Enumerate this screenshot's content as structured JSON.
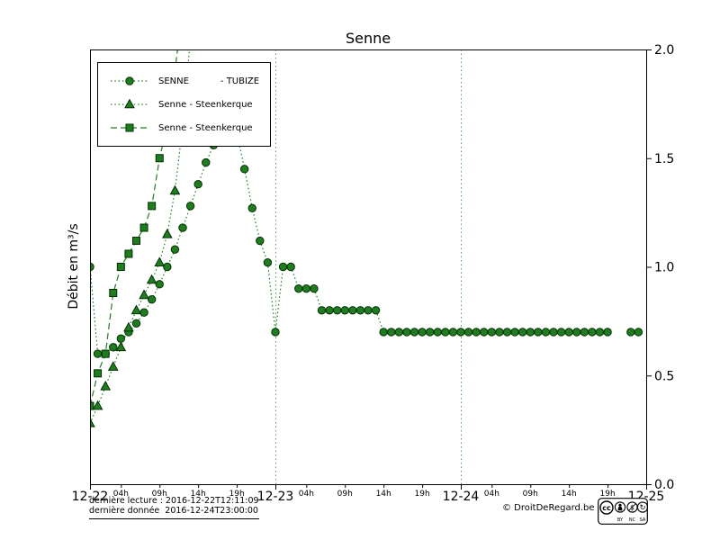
{
  "chart_data": {
    "type": "line",
    "title": "Senne",
    "ylabel": "Débit en m³/s",
    "ylim": [
      0,
      2.0
    ],
    "yticks": [
      0,
      0.5,
      1.0,
      1.5,
      2.0
    ],
    "ytick_labels": [
      "0.0",
      "0.5",
      "1.0",
      "1.5",
      "2.0"
    ],
    "x_total_hours": 72,
    "x_major": [
      {
        "h": 0,
        "label": "12-22"
      },
      {
        "h": 24,
        "label": "12-23"
      },
      {
        "h": 48,
        "label": "12-24"
      },
      {
        "h": 72,
        "label": "12-25"
      }
    ],
    "x_minor": [
      {
        "h": 4,
        "label": "04h"
      },
      {
        "h": 9,
        "label": "09h"
      },
      {
        "h": 14,
        "label": "14h"
      },
      {
        "h": 19,
        "label": "19h"
      },
      {
        "h": 28,
        "label": "04h"
      },
      {
        "h": 33,
        "label": "09h"
      },
      {
        "h": 38,
        "label": "14h"
      },
      {
        "h": 43,
        "label": "19h"
      },
      {
        "h": 52,
        "label": "04h"
      },
      {
        "h": 57,
        "label": "09h"
      },
      {
        "h": 62,
        "label": "14h"
      },
      {
        "h": 67,
        "label": "19h"
      }
    ],
    "day_gridlines": [
      24,
      48
    ],
    "grid": "partial-dotted-day-separators",
    "legend_position": "upper-left",
    "colors": {
      "series_green": "#1f7d1f",
      "marker_edge": "#022f02",
      "grid": "#55a055",
      "axis": "#000000",
      "background": "#ffffff"
    },
    "series": [
      {
        "id": "tubize-circles",
        "name": "SENNE           - TUBIZE",
        "marker": "circle",
        "linestyle": "dotted",
        "color": "#1f7d1f",
        "x_start_hour": 0,
        "x_step_hours": 1,
        "values": [
          1.0,
          0.6,
          0.6,
          0.63,
          0.67,
          0.7,
          0.74,
          0.79,
          0.85,
          0.92,
          1.0,
          1.08,
          1.18,
          1.28,
          1.38,
          1.48,
          1.56,
          1.62,
          1.65,
          1.62,
          1.45,
          1.27,
          1.12,
          1.02,
          0.7,
          1.0,
          1.0,
          0.9,
          0.9,
          0.9,
          0.8,
          0.8,
          0.8,
          0.8,
          0.8,
          0.8,
          0.8,
          0.8,
          0.7,
          0.7,
          0.7,
          0.7,
          0.7,
          0.7,
          0.7,
          0.7,
          0.7,
          0.7,
          0.7,
          0.7,
          0.7,
          0.7,
          0.7,
          0.7,
          0.7,
          0.7,
          0.7,
          0.7,
          0.7,
          0.7,
          0.7,
          0.7,
          0.7,
          0.7,
          0.7,
          0.7,
          0.7,
          0.7,
          null,
          null,
          0.7,
          0.7
        ]
      },
      {
        "id": "steenkerque-triangles",
        "name": "Senne - Steenkerque",
        "marker": "triangle",
        "linestyle": "dotted",
        "color": "#1f7d1f",
        "x_start_hour": 0,
        "x_step_hours": 1,
        "values": [
          0.28,
          0.36,
          0.45,
          0.54,
          0.63,
          0.72,
          0.8,
          0.87,
          0.94,
          1.02,
          1.15,
          1.35,
          1.65,
          2.05
        ]
      },
      {
        "id": "steenkerque-squares",
        "name": "Senne - Steenkerque",
        "marker": "square",
        "linestyle": "dashed",
        "color": "#1f7d1f",
        "x_start_hour": 0,
        "x_step_hours": 1,
        "values": [
          0.36,
          0.51,
          0.6,
          0.88,
          1.0,
          1.06,
          1.12,
          1.18,
          1.28,
          1.5,
          1.65,
          1.9,
          2.2
        ]
      }
    ]
  },
  "footer": {
    "line1": "dernière lecture : 2016-12-22T12:11:09",
    "line2": "dernière donnée  2016-12-24T23:00:00",
    "copyright": "© DroitDeRegard.be",
    "badge": {
      "cc_label": "cc",
      "by_label": "BY",
      "nc_label": "NC",
      "sa_label": "SA",
      "nc_icon": "$",
      "sa_icon": "↻"
    }
  }
}
